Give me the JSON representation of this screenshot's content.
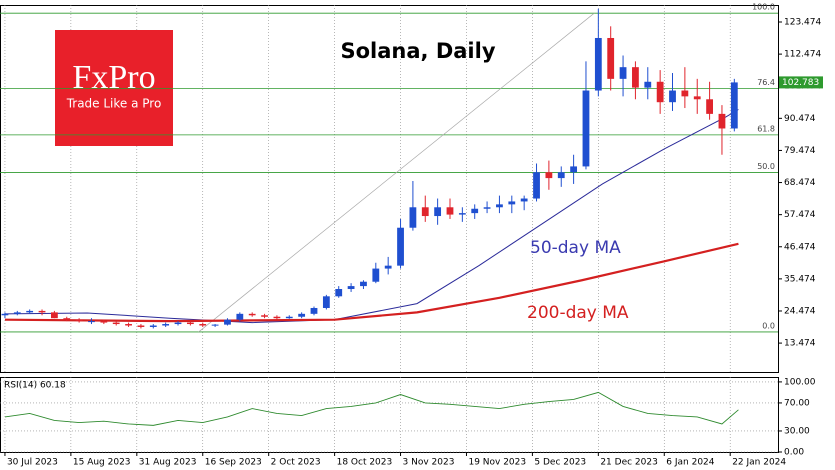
{
  "chart_data": [
    {
      "type": "candlestick",
      "title": "Solana, Daily",
      "logo": "FxPro",
      "tagline": "Trade Like a Pro",
      "xlim": [
        -1.2,
        187.6
      ],
      "ylim": [
        3.57,
        129.3
      ],
      "yticks": [
        13.474,
        24.474,
        35.474,
        46.474,
        57.474,
        68.474,
        79.474,
        90.474,
        101.474,
        112.474,
        123.474
      ],
      "up_color": "#1f4fd0",
      "down_color": "#e0242c",
      "x": [
        0,
        3,
        6,
        9,
        12,
        15,
        18,
        21,
        24,
        27,
        30,
        33,
        36,
        39,
        42,
        45,
        48,
        51,
        54,
        57,
        60,
        63,
        66,
        69,
        72,
        75,
        78,
        81,
        84,
        87,
        90,
        93,
        96,
        99,
        102,
        105,
        108,
        111,
        114,
        117,
        120,
        123,
        126,
        129,
        132,
        135,
        138,
        141,
        144,
        147,
        150,
        153,
        156,
        159,
        162,
        165,
        168,
        171,
        174,
        177
      ],
      "candles": [
        [
          23,
          24,
          22,
          23.5
        ],
        [
          23.5,
          24.5,
          23,
          24
        ],
        [
          24,
          25,
          23.5,
          24.5
        ],
        [
          24.5,
          25,
          23,
          24
        ],
        [
          24,
          24.5,
          22,
          22
        ],
        [
          22,
          22.5,
          21,
          21.5
        ],
        [
          21.5,
          22,
          20.5,
          21
        ],
        [
          21,
          22,
          20,
          21
        ],
        [
          21,
          21.5,
          20,
          20.5
        ],
        [
          20.5,
          21,
          19.5,
          20
        ],
        [
          20,
          20.5,
          19,
          19.5
        ],
        [
          19.5,
          20,
          18.5,
          19
        ],
        [
          19,
          20,
          18.5,
          19.5
        ],
        [
          19.5,
          20.5,
          19,
          20
        ],
        [
          20,
          21,
          19.5,
          20.5
        ],
        [
          20.5,
          21,
          19.5,
          20
        ],
        [
          20,
          20.5,
          19,
          19.5
        ],
        [
          19.5,
          20,
          19,
          19.8
        ],
        [
          19.8,
          22,
          19.5,
          21.5
        ],
        [
          21.5,
          24,
          21,
          23.5
        ],
        [
          23.5,
          24,
          22.5,
          23
        ],
        [
          23,
          23.5,
          22,
          22.5
        ],
        [
          22.5,
          23,
          21.5,
          22
        ],
        [
          22,
          23,
          21.8,
          22.5
        ],
        [
          22.5,
          24,
          22,
          23.5
        ],
        [
          23.5,
          26,
          23,
          25.5
        ],
        [
          25.5,
          30,
          25,
          29.5
        ],
        [
          29.5,
          33,
          29,
          32
        ],
        [
          32,
          34,
          31,
          33
        ],
        [
          33,
          35,
          32,
          34.5
        ],
        [
          34.5,
          41,
          34,
          39
        ],
        [
          39,
          43,
          37,
          40
        ],
        [
          40,
          56,
          39,
          53
        ],
        [
          53,
          69,
          52,
          60
        ],
        [
          60,
          64,
          55,
          57
        ],
        [
          57,
          63,
          54,
          60
        ],
        [
          60,
          63,
          56,
          57.5
        ],
        [
          57.5,
          60,
          55,
          58
        ],
        [
          58,
          61,
          56,
          59.5
        ],
        [
          59.5,
          62,
          58,
          60
        ],
        [
          60,
          64,
          58,
          61
        ],
        [
          61,
          64,
          58,
          62
        ],
        [
          62,
          64,
          59,
          63
        ],
        [
          63,
          75,
          62,
          72
        ],
        [
          72,
          76,
          66,
          70
        ],
        [
          70,
          74,
          67,
          72
        ],
        [
          72,
          78,
          68,
          74
        ],
        [
          74,
          110,
          73,
          100
        ],
        [
          100,
          128,
          98,
          118
        ],
        [
          118,
          122,
          100,
          104
        ],
        [
          104,
          112,
          98,
          108
        ],
        [
          108,
          110,
          97,
          101
        ],
        [
          101,
          108,
          97,
          103
        ],
        [
          103,
          107,
          92,
          96
        ],
        [
          96,
          106,
          93,
          100
        ],
        [
          100,
          108,
          94,
          98
        ],
        [
          98,
          104,
          92,
          97
        ],
        [
          97,
          103,
          90,
          92
        ],
        [
          92,
          95,
          78,
          87
        ],
        [
          87,
          104,
          86,
          102.783
        ]
      ],
      "overlays": [
        {
          "name": "50-day MA",
          "color": "#2b2b9a",
          "x": [
            0,
            20,
            40,
            60,
            80,
            100,
            115,
            130,
            145,
            160,
            175,
            178
          ],
          "values": [
            23.5,
            23.8,
            22,
            20.5,
            21.5,
            27,
            40,
            54,
            68,
            80,
            91,
            93.5
          ]
        },
        {
          "name": "200-day MA",
          "color": "#d42020",
          "x": [
            0,
            40,
            80,
            100,
            120,
            140,
            160,
            178
          ],
          "values": [
            21.5,
            21,
            21.5,
            24,
            29,
            35,
            41.5,
            47.5
          ]
        }
      ],
      "levels": [
        {
          "value": 126.5,
          "label": "100.0"
        },
        {
          "value": 100.7,
          "label": "76.4"
        },
        {
          "value": 84.8,
          "label": "61.8"
        },
        {
          "value": 71.9,
          "label": "50.0"
        },
        {
          "value": 17.3,
          "label": "0.0"
        }
      ],
      "level_color": "#2e9a2e",
      "trendline": {
        "x": [
          47,
          143
        ],
        "y": [
          17.3,
          126.5
        ]
      }
    },
    {
      "type": "line",
      "title": "RSI(14) 60.18",
      "color": "#2e8a2e",
      "xlim": [
        -1.2,
        187.6
      ],
      "ylim": [
        0,
        107
      ],
      "yticks": [
        {
          "value": 0,
          "label": "0.00"
        },
        {
          "value": 30,
          "label": "30.00"
        },
        {
          "value": 70,
          "label": "70.00"
        },
        {
          "value": 100,
          "label": "100.00"
        }
      ],
      "x": [
        0,
        6,
        12,
        18,
        24,
        30,
        36,
        42,
        48,
        54,
        60,
        66,
        72,
        78,
        84,
        90,
        96,
        102,
        108,
        114,
        120,
        126,
        132,
        138,
        144,
        150,
        156,
        162,
        168,
        174,
        178
      ],
      "values": [
        50,
        55,
        45,
        42,
        44,
        40,
        38,
        45,
        42,
        50,
        62,
        55,
        52,
        62,
        65,
        70,
        82,
        70,
        68,
        65,
        62,
        68,
        72,
        75,
        85,
        65,
        55,
        52,
        50,
        40,
        60.18
      ],
      "xticks": [
        {
          "value": 0,
          "label": "30 Jul 2023"
        },
        {
          "value": 16,
          "label": "15 Aug 2023"
        },
        {
          "value": 32,
          "label": "31 Aug 2023"
        },
        {
          "value": 48,
          "label": "16 Sep 2023"
        },
        {
          "value": 64,
          "label": "2 Oct 2023"
        },
        {
          "value": 80,
          "label": "18 Oct 2023"
        },
        {
          "value": 96,
          "label": "3 Nov 2023"
        },
        {
          "value": 112,
          "label": "19 Nov 2023"
        },
        {
          "value": 128,
          "label": "5 Dec 2023"
        },
        {
          "value": 144,
          "label": "21 Dec 2023"
        },
        {
          "value": 160,
          "label": "6 Jan 2024"
        },
        {
          "value": 176,
          "label": "22 Jan 2024"
        }
      ]
    }
  ]
}
